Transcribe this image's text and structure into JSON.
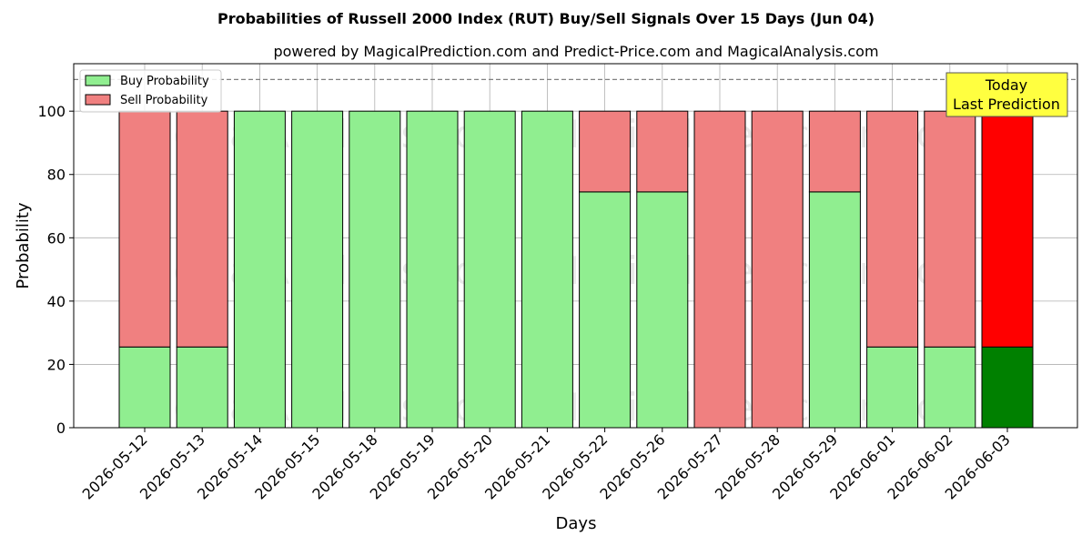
{
  "chart_data": {
    "type": "bar",
    "title": "Probabilities of Russell 2000 Index (RUT) Buy/Sell Signals Over 15 Days (Jun 04)",
    "subtitle": "powered by MagicalPrediction.com and Predict-Price.com and MagicalAnalysis.com",
    "xlabel": "Days",
    "ylabel": "Probability",
    "ylim": [
      0,
      115
    ],
    "yticks": [
      0,
      20,
      40,
      60,
      80,
      100
    ],
    "grid": true,
    "legend_position": "top-left",
    "reference_line": {
      "y": 110,
      "style": "dashed",
      "color": "#808080"
    },
    "categories": [
      "2026-05-12",
      "2026-05-13",
      "2026-05-14",
      "2026-05-15",
      "2026-05-18",
      "2026-05-19",
      "2026-05-20",
      "2026-05-21",
      "2026-05-22",
      "2026-05-26",
      "2026-05-27",
      "2026-05-28",
      "2026-05-29",
      "2026-06-01",
      "2026-06-02",
      "2026-06-03"
    ],
    "series": [
      {
        "name": "Buy Probability",
        "color": "#90ee90",
        "values": [
          25.5,
          25.5,
          100,
          100,
          100,
          100,
          100,
          100,
          74.5,
          74.5,
          0,
          0,
          74.5,
          25.5,
          25.5,
          25.5
        ]
      },
      {
        "name": "Sell Probability",
        "color": "#f08080",
        "values": [
          74.5,
          74.5,
          0,
          0,
          0,
          0,
          0,
          0,
          25.5,
          25.5,
          100,
          100,
          25.5,
          74.5,
          74.5,
          74.5
        ]
      }
    ],
    "highlight": {
      "index": 15,
      "buy_color": "#008000",
      "sell_color": "#ff0000"
    },
    "annotation": {
      "lines": [
        "Today",
        "Last Prediction"
      ],
      "background": "#ffff40"
    },
    "watermarks": [
      "MagicalAnalysis.com",
      "MagicalPrediction.com"
    ]
  }
}
